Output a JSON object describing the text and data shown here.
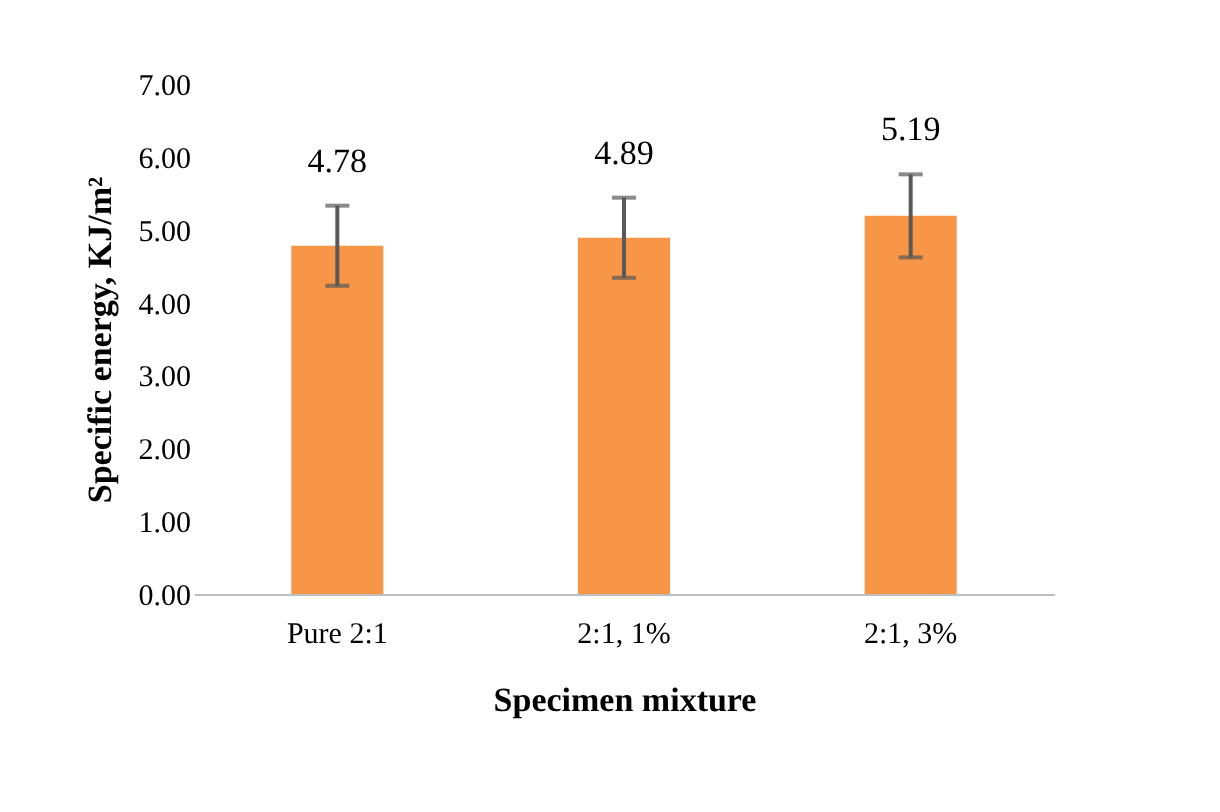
{
  "chart_data": {
    "type": "bar",
    "xlabel": "Specimen mixture",
    "ylabel": "Specific energy, KJ/m²",
    "categories": [
      "Pure 2:1",
      "2:1, 1%",
      "2:1, 3%"
    ],
    "values": [
      4.78,
      4.89,
      5.19
    ],
    "errors": [
      0.55,
      0.55,
      0.57
    ],
    "color": "#f79646",
    "ylim": [
      0,
      7
    ],
    "yticks": [
      {
        "value": 0,
        "label": "0.00"
      },
      {
        "value": 1,
        "label": "1.00"
      },
      {
        "value": 2,
        "label": "2.00"
      },
      {
        "value": 3,
        "label": "3.00"
      },
      {
        "value": 4,
        "label": "4.00"
      },
      {
        "value": 5,
        "label": "5.00"
      },
      {
        "value": 6,
        "label": "6.00"
      },
      {
        "value": 7,
        "label": "7.00"
      }
    ],
    "data_labels": true,
    "grid": false
  }
}
